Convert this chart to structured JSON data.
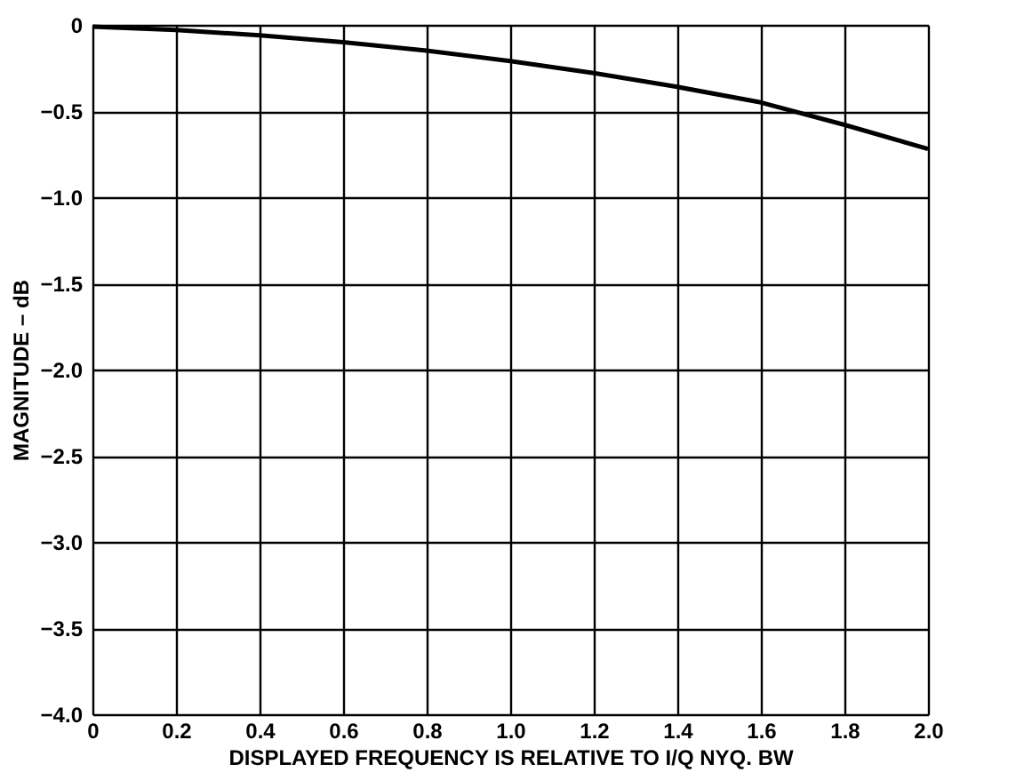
{
  "chart_data": {
    "type": "line",
    "xlabel": "DISPLAYED FREQUENCY IS RELATIVE TO I/Q NYQ. BW",
    "ylabel": "MAGNITUDE – dB",
    "x": [
      0,
      0.2,
      0.4,
      0.6,
      0.8,
      1.0,
      1.2,
      1.4,
      1.6,
      1.8,
      2.0
    ],
    "series": [
      {
        "color": "#000000",
        "values": [
          -0.01,
          -0.03,
          -0.06,
          -0.1,
          -0.15,
          -0.21,
          -0.28,
          -0.36,
          -0.45,
          -0.58,
          -0.72
        ]
      }
    ],
    "xlim": [
      0,
      2.0
    ],
    "ylim": [
      -4.0,
      0
    ],
    "xticks": [
      0,
      0.2,
      0.4,
      0.6,
      0.8,
      {
        "value": 1.0,
        "label": "1.0"
      },
      1.2,
      1.4,
      1.6,
      1.8,
      {
        "value": 2.0,
        "label": "2.0"
      }
    ],
    "yticks": [
      {
        "value": -4.0,
        "label": "−4.0"
      },
      {
        "value": -3.5,
        "label": "−3.5"
      },
      {
        "value": -3.0,
        "label": "−3.0"
      },
      {
        "value": -2.5,
        "label": "−2.5"
      },
      {
        "value": -2.0,
        "label": "−2.0"
      },
      {
        "value": -1.5,
        "label": "−1.5"
      },
      {
        "value": -1.0,
        "label": "−1.0"
      },
      {
        "value": -0.5,
        "label": "−0.5"
      },
      0
    ],
    "grid": true,
    "marker": "none",
    "line_style": "solid"
  }
}
